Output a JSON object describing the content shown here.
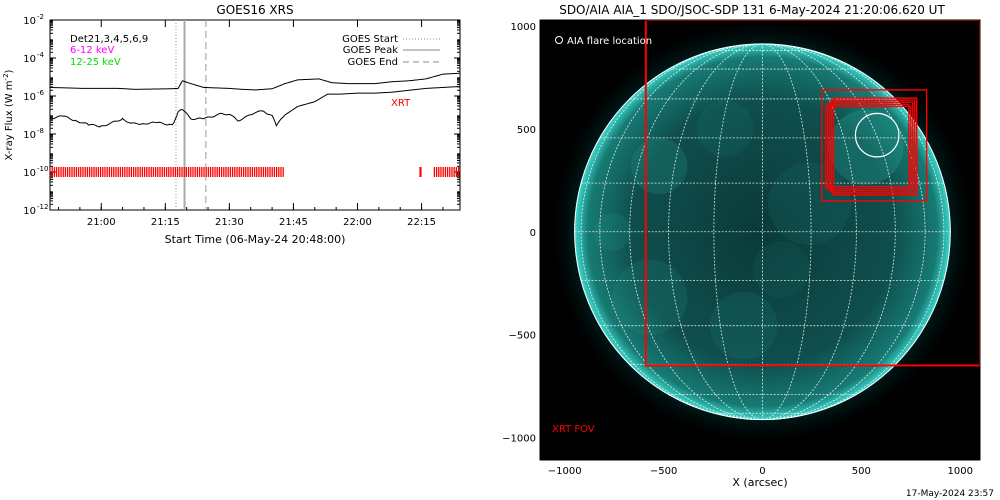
{
  "goes": {
    "title": "GOES16 XRS",
    "ylabel_main": "X-ray Flux (W m",
    "ylabel_sup": "-2",
    "ylabel_end": ")",
    "xlabel": "Start Time (06-May-24 20:48:00)",
    "channels_text": "Det21,3,4,5,6,9",
    "band_low": "6-12 keV",
    "band_high": "12-25 keV",
    "legend": {
      "start": "GOES Start",
      "peak": "GOES Peak",
      "end": "GOES End"
    },
    "xrt_label": "XRT",
    "colors": {
      "band_low": "#ff00ff",
      "band_high": "#00dd00",
      "xrt": "#ff0000"
    }
  },
  "chart_data": [
    {
      "type": "line",
      "title": "GOES16 XRS",
      "xlabel": "Start Time (06-May-24 20:48:00)",
      "ylabel": "X-ray Flux (W m^-2)",
      "yscale": "log",
      "xlim_min": [
        0,
        96
      ],
      "ylim_exp": [
        -12,
        -2
      ],
      "x_ticks": [
        {
          "t": 12,
          "label": "21:00"
        },
        {
          "t": 27,
          "label": "21:15"
        },
        {
          "t": 42,
          "label": "21:30"
        },
        {
          "t": 57,
          "label": "21:45"
        },
        {
          "t": 72,
          "label": "22:00"
        },
        {
          "t": 87,
          "label": "22:15"
        }
      ],
      "y_ticks": [
        {
          "exp": -2,
          "label": "10",
          "sup": "-2"
        },
        {
          "exp": -4,
          "label": "10",
          "sup": "-4"
        },
        {
          "exp": -6,
          "label": "10",
          "sup": "-6"
        },
        {
          "exp": -8,
          "label": "10",
          "sup": "-8"
        },
        {
          "exp": -10,
          "label": "10",
          "sup": "-10"
        },
        {
          "exp": -12,
          "label": "10",
          "sup": "-12"
        }
      ],
      "series": [
        {
          "points_exp": [
            [
              0,
              -5.55
            ],
            [
              8,
              -5.6
            ],
            [
              16,
              -5.6
            ],
            [
              20,
              -5.65
            ],
            [
              28,
              -5.62
            ],
            [
              30,
              -5.6
            ],
            [
              31,
              -5.2
            ],
            [
              33,
              -5.35
            ],
            [
              36,
              -5.55
            ],
            [
              42,
              -5.6
            ],
            [
              45,
              -5.65
            ],
            [
              48,
              -5.68
            ],
            [
              52,
              -5.62
            ],
            [
              55,
              -5.35
            ],
            [
              58,
              -5.15
            ],
            [
              63,
              -5.1
            ],
            [
              66,
              -5.3
            ],
            [
              70,
              -5.35
            ],
            [
              76,
              -5.35
            ],
            [
              80,
              -5.25
            ],
            [
              84,
              -5.2
            ],
            [
              88,
              -5.1
            ],
            [
              92,
              -4.85
            ],
            [
              96,
              -4.8
            ]
          ]
        },
        {
          "points_exp": [
            [
              0,
              -7.2
            ],
            [
              3,
              -7.05
            ],
            [
              6,
              -7.3
            ],
            [
              9,
              -7.5
            ],
            [
              12,
              -7.6
            ],
            [
              14,
              -7.45
            ],
            [
              17,
              -7.2
            ],
            [
              19,
              -7.45
            ],
            [
              22,
              -7.45
            ],
            [
              25,
              -7.4
            ],
            [
              28,
              -7.5
            ],
            [
              29,
              -7.45
            ],
            [
              30,
              -6.85
            ],
            [
              31,
              -6.7
            ],
            [
              33,
              -7.2
            ],
            [
              36,
              -7.2
            ],
            [
              40,
              -6.95
            ],
            [
              42,
              -6.95
            ],
            [
              44,
              -7.3
            ],
            [
              46,
              -7.1
            ],
            [
              48,
              -6.85
            ],
            [
              50,
              -6.8
            ],
            [
              52,
              -7.05
            ],
            [
              53,
              -7.55
            ],
            [
              55,
              -7.0
            ],
            [
              58,
              -6.55
            ],
            [
              62,
              -6.3
            ],
            [
              65,
              -5.9
            ],
            [
              68,
              -5.9
            ],
            [
              72,
              -5.85
            ],
            [
              76,
              -5.85
            ],
            [
              80,
              -5.8
            ],
            [
              84,
              -5.7
            ],
            [
              88,
              -5.6
            ],
            [
              92,
              -5.55
            ],
            [
              96,
              -5.5
            ]
          ]
        }
      ],
      "event_lines_t": {
        "start": 29.5,
        "peak": 31.5,
        "end": 36.5
      },
      "xrt_segments_t": [
        [
          0,
          55
        ],
        [
          86.5,
          87
        ],
        [
          90,
          96
        ]
      ],
      "xrt_bar_exp": -10
    },
    {
      "type": "scatter",
      "title": "SDO/AIA AIA_1 SDO/JSOC-SDP 131  6-May-2024 21:20:06.620 UT",
      "xlabel": "X (arcsec)",
      "ylabel": "",
      "xlim": [
        -1125,
        1100
      ],
      "ylim": [
        -1110,
        1030
      ],
      "x_ticks": [
        -1000,
        -500,
        0,
        500,
        1000
      ],
      "y_ticks": [
        1000,
        500,
        0,
        -500,
        -1000
      ],
      "solar_radius": 950,
      "flare_location": [
        580,
        470
      ],
      "flare_radius": 110,
      "xrt_fov": [
        [
          -590,
          1030,
          1100,
          -650
        ],
        [
          300,
          690,
          830,
          150
        ],
        [
          320,
          610,
          750,
          210
        ],
        [
          330,
          620,
          740,
          220
        ],
        [
          340,
          630,
          760,
          200
        ],
        [
          350,
          640,
          770,
          190
        ],
        [
          360,
          650,
          780,
          180
        ]
      ]
    }
  ],
  "aia": {
    "title": "SDO/AIA AIA_1 SDO/JSOC-SDP 131  6-May-2024 21:20:06.620 UT",
    "flare_legend": "AIA flare location",
    "fov_label": "XRT FOV",
    "xlabel": "X (arcsec)",
    "colors": {
      "sun": "#00c8b4",
      "fov": "#ff0000"
    }
  },
  "footer": {
    "timestamp": "17-May-2024 23:57"
  }
}
